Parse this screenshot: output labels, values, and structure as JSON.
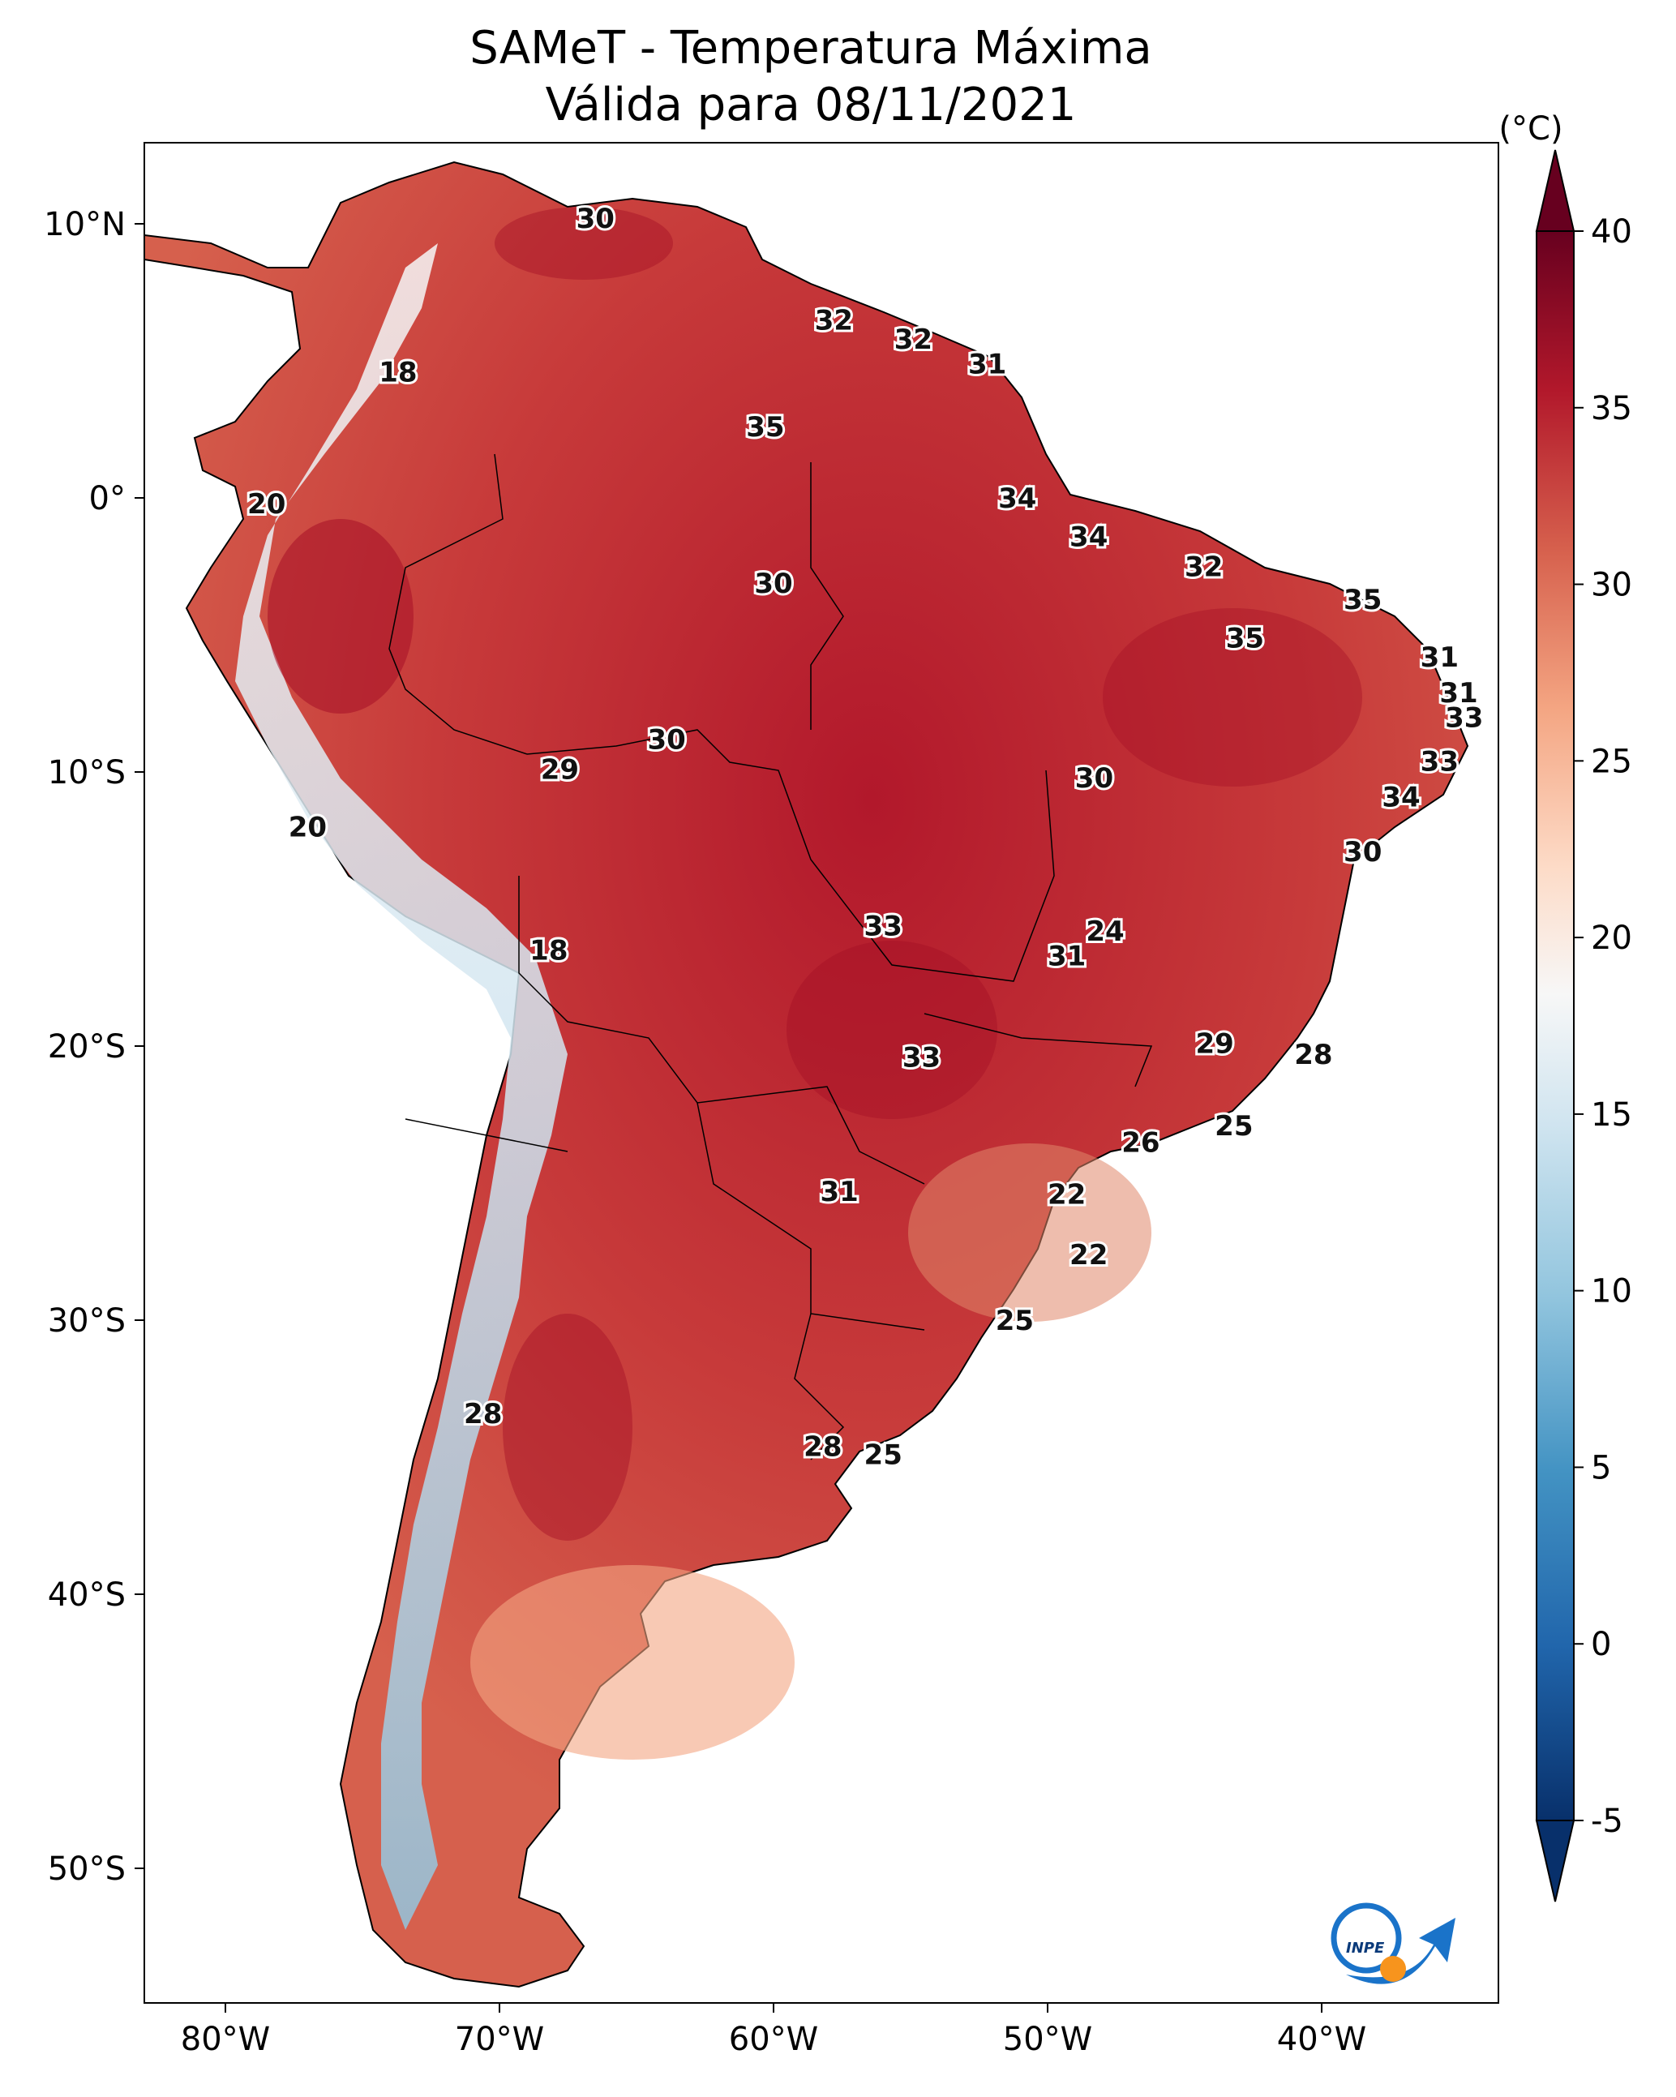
{
  "title": {
    "line1": "SAMeT - Temperatura Máxima",
    "line2": "Válida para 08/11/2021"
  },
  "axes": {
    "lon_ticks": [
      "80°W",
      "70°W",
      "60°W",
      "50°W",
      "40°W"
    ],
    "lat_ticks": [
      "10°N",
      "0°",
      "10°S",
      "20°S",
      "30°S",
      "40°S",
      "50°S"
    ]
  },
  "colorbar": {
    "unit": "(°C)",
    "ticks": [
      "-5",
      "0",
      "5",
      "10",
      "15",
      "20",
      "25",
      "30",
      "35",
      "40"
    ],
    "range": [
      -5,
      40
    ],
    "colors": [
      "#08306b",
      "#2166ac",
      "#4393c3",
      "#92c5de",
      "#d1e5f0",
      "#f7f7f7",
      "#fddbc7",
      "#f4a582",
      "#d6604d",
      "#b2182b",
      "#67001f"
    ]
  },
  "logo": {
    "text": "INPE",
    "icon": "inpe-logo-icon"
  },
  "station_values": [
    {
      "label": "30",
      "lon": -66.5,
      "lat": 10.2
    },
    {
      "label": "32",
      "lon": -57.8,
      "lat": 6.5
    },
    {
      "label": "32",
      "lon": -54.9,
      "lat": 5.8
    },
    {
      "label": "31",
      "lon": -52.2,
      "lat": 4.9
    },
    {
      "label": "35",
      "lon": -60.3,
      "lat": 2.6
    },
    {
      "label": "18",
      "lon": -73.7,
      "lat": 4.6
    },
    {
      "label": "20",
      "lon": -78.5,
      "lat": -0.2
    },
    {
      "label": "34",
      "lon": -51.1,
      "lat": 0.0
    },
    {
      "label": "34",
      "lon": -48.5,
      "lat": -1.4
    },
    {
      "label": "32",
      "lon": -44.3,
      "lat": -2.5
    },
    {
      "label": "35",
      "lon": -38.5,
      "lat": -3.7
    },
    {
      "label": "35",
      "lon": -42.8,
      "lat": -5.1
    },
    {
      "label": "30",
      "lon": -60.0,
      "lat": -3.1
    },
    {
      "label": "31",
      "lon": -35.7,
      "lat": -5.8
    },
    {
      "label": "31",
      "lon": -35.0,
      "lat": -7.1
    },
    {
      "label": "33",
      "lon": -34.8,
      "lat": -8.0
    },
    {
      "label": "33",
      "lon": -35.7,
      "lat": -9.6
    },
    {
      "label": "34",
      "lon": -37.1,
      "lat": -10.9
    },
    {
      "label": "30",
      "lon": -63.9,
      "lat": -8.8
    },
    {
      "label": "29",
      "lon": -67.8,
      "lat": -9.9
    },
    {
      "label": "30",
      "lon": -48.3,
      "lat": -10.2
    },
    {
      "label": "30",
      "lon": -38.5,
      "lat": -12.9
    },
    {
      "label": "20",
      "lon": -77.0,
      "lat": -12.0
    },
    {
      "label": "33",
      "lon": -56.0,
      "lat": -15.6
    },
    {
      "label": "24",
      "lon": -47.9,
      "lat": -15.8
    },
    {
      "label": "31",
      "lon": -49.3,
      "lat": -16.7
    },
    {
      "label": "18",
      "lon": -68.2,
      "lat": -16.5
    },
    {
      "label": "29",
      "lon": -43.9,
      "lat": -19.9
    },
    {
      "label": "28",
      "lon": -40.3,
      "lat": -20.3
    },
    {
      "label": "33",
      "lon": -54.6,
      "lat": -20.4
    },
    {
      "label": "25",
      "lon": -43.2,
      "lat": -22.9
    },
    {
      "label": "26",
      "lon": -46.6,
      "lat": -23.5
    },
    {
      "label": "22",
      "lon": -49.3,
      "lat": -25.4
    },
    {
      "label": "31",
      "lon": -57.6,
      "lat": -25.3
    },
    {
      "label": "22",
      "lon": -48.5,
      "lat": -27.6
    },
    {
      "label": "25",
      "lon": -51.2,
      "lat": -30.0
    },
    {
      "label": "28",
      "lon": -70.6,
      "lat": -33.4
    },
    {
      "label": "28",
      "lon": -58.2,
      "lat": -34.6
    },
    {
      "label": "25",
      "lon": -56.0,
      "lat": -34.9
    }
  ]
}
